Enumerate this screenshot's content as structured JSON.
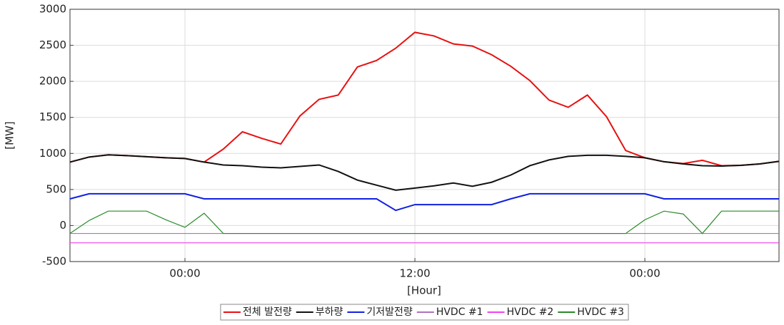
{
  "chart_data": {
    "type": "line",
    "xlabel": "[Hour]",
    "ylabel": "[MW]",
    "xlim": [
      -6,
      31
    ],
    "xticks": [
      {
        "value": 0,
        "label": "00:00"
      },
      {
        "value": 12,
        "label": "12:00"
      },
      {
        "value": 24,
        "label": "00:00"
      }
    ],
    "ylim": [
      -500,
      3000
    ],
    "yticks": [
      -500,
      0,
      500,
      1000,
      1500,
      2000,
      2500,
      3000
    ],
    "grid": true,
    "legend": "bottom",
    "x": [
      -6,
      -5,
      -4,
      -3,
      -2,
      -1,
      0,
      1,
      2,
      3,
      4,
      5,
      6,
      7,
      8,
      9,
      10,
      11,
      12,
      13,
      14,
      15,
      16,
      17,
      18,
      19,
      20,
      21,
      22,
      23,
      24,
      25,
      26,
      27,
      28,
      29,
      30,
      31
    ],
    "series": [
      {
        "name": "전체 발전량",
        "color": "#e81010",
        "values": [
          880,
          950,
          980,
          970,
          955,
          940,
          930,
          880,
          1060,
          1300,
          1210,
          1130,
          1520,
          1750,
          1810,
          2200,
          2290,
          2460,
          2680,
          2630,
          2520,
          2490,
          2370,
          2210,
          2010,
          1740,
          1640,
          1810,
          1510,
          1040,
          940,
          885,
          860,
          905,
          830,
          835,
          855,
          890
        ]
      },
      {
        "name": "부하량",
        "color": "#111111",
        "values": [
          880,
          950,
          980,
          970,
          955,
          940,
          930,
          880,
          840,
          830,
          810,
          800,
          820,
          840,
          750,
          630,
          560,
          490,
          520,
          550,
          590,
          545,
          600,
          700,
          830,
          910,
          960,
          975,
          975,
          960,
          940,
          885,
          855,
          830,
          825,
          835,
          855,
          890
        ]
      },
      {
        "name": "기저발전량",
        "color": "#1020e0",
        "values": [
          370,
          440,
          440,
          440,
          440,
          440,
          440,
          370,
          370,
          370,
          370,
          370,
          370,
          370,
          370,
          370,
          370,
          210,
          290,
          290,
          290,
          290,
          290,
          370,
          440,
          440,
          440,
          440,
          440,
          440,
          440,
          370,
          370,
          370,
          370,
          370,
          370,
          370
        ]
      },
      {
        "name": "HVDC #1",
        "color": "#b070c0",
        "values": [
          -110,
          -110,
          -110,
          -110,
          -110,
          -110,
          -110,
          -110,
          -110,
          -110,
          -110,
          -110,
          -110,
          -110,
          -110,
          -110,
          -110,
          -110,
          -110,
          -110,
          -110,
          -110,
          -110,
          -110,
          -110,
          -110,
          -110,
          -110,
          -110,
          -110,
          -110,
          -110,
          -110,
          -110,
          -110,
          -110,
          -110,
          -110
        ]
      },
      {
        "name": "HVDC #2",
        "color": "#f040f0",
        "values": [
          -240,
          -240,
          -240,
          -240,
          -240,
          -240,
          -240,
          -240,
          -240,
          -240,
          -240,
          -240,
          -240,
          -240,
          -240,
          -240,
          -240,
          -240,
          -240,
          -240,
          -240,
          -240,
          -240,
          -240,
          -240,
          -240,
          -240,
          -240,
          -240,
          -240,
          -240,
          -240,
          -240,
          -240,
          -240,
          -240,
          -240,
          -240
        ]
      },
      {
        "name": "HVDC #3",
        "color": "#2a8a2a",
        "values": [
          -110,
          70,
          200,
          200,
          200,
          80,
          -25,
          170,
          -110,
          -110,
          -110,
          -110,
          -110,
          -110,
          -110,
          -110,
          -110,
          -110,
          -110,
          -110,
          -110,
          -110,
          -110,
          -110,
          -110,
          -110,
          -110,
          -110,
          -110,
          -110,
          80,
          200,
          160,
          -110,
          200,
          200,
          200,
          200
        ]
      }
    ]
  }
}
